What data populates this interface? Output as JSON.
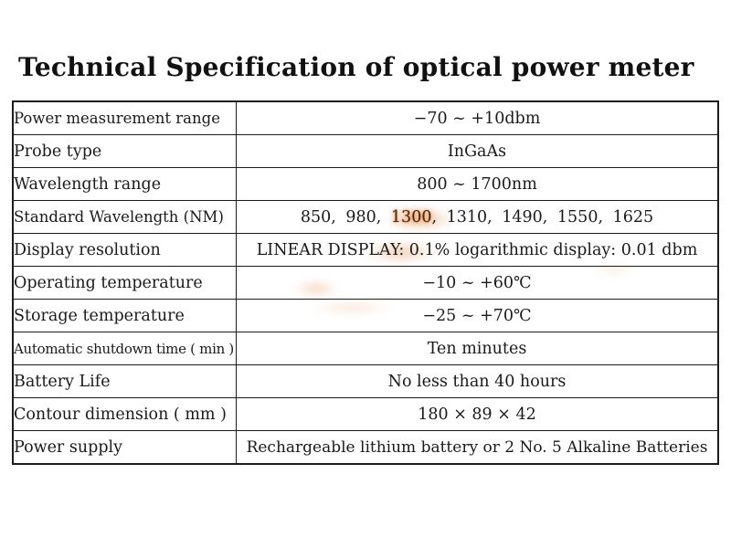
{
  "page": {
    "title": "Technical Specification of optical power meter"
  },
  "colors": {
    "text": "#1a1a1a",
    "border": "#1c1c1c",
    "watermark_orange": "#d67624"
  },
  "table": {
    "rows": [
      {
        "label": "Power measurement range",
        "value": "−70 ~ +10dbm"
      },
      {
        "label": "Probe type",
        "value": "InGaAs"
      },
      {
        "label": "Wavelength range",
        "value": "800 ~ 1700nm"
      },
      {
        "label": "Standard Wavelength (NM)",
        "value": {
          "pre": "850,  980,  ",
          "highlight": "1300",
          "post": ",  1310,  1490,  1550,  1625"
        }
      },
      {
        "label": "Display resolution",
        "value": "LINEAR DISPLAY: 0.1% logarithmic display: 0.01 dbm"
      },
      {
        "label": "Operating temperature",
        "value": "−10 ~ +60℃"
      },
      {
        "label": "Storage temperature",
        "value": "−25 ~ +70℃"
      },
      {
        "label": "Automatic shutdown time ( min )",
        "value": "Ten minutes"
      },
      {
        "label": "Battery Life",
        "value": "No less than 40 hours"
      },
      {
        "label": "Contour dimension ( mm )",
        "value": "180 × 89 × 42"
      },
      {
        "label": "Power supply",
        "value": "Rechargeable lithium battery or 2 No. 5 Alkaline Batteries"
      }
    ]
  }
}
